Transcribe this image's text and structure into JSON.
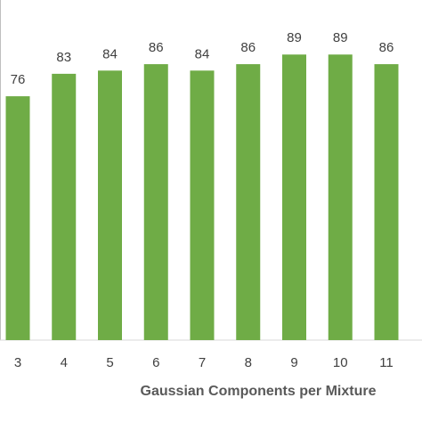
{
  "chart_data": {
    "type": "bar",
    "x_label": "Gaussian Components per Mixture",
    "categories": [
      "3",
      "4",
      "5",
      "6",
      "7",
      "8",
      "9",
      "10",
      "11"
    ],
    "values": [
      76,
      83,
      84,
      86,
      84,
      86,
      89,
      89,
      86
    ],
    "color": "#6fac46",
    "ylim": [
      0,
      106
    ]
  }
}
